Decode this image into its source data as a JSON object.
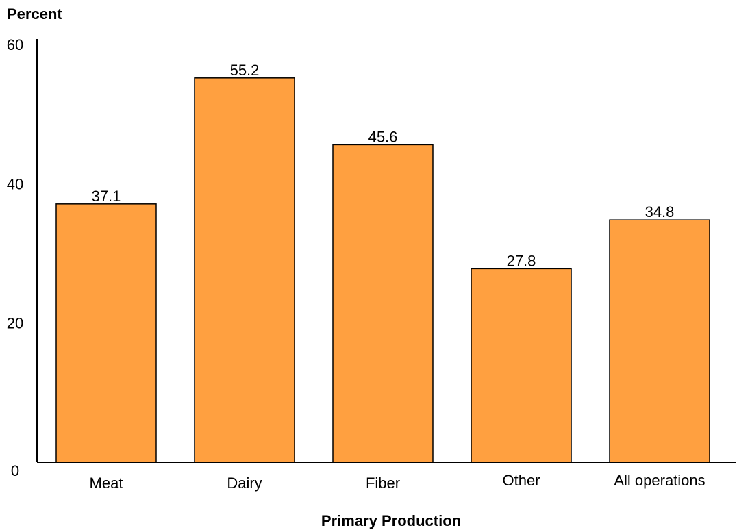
{
  "chart_data": {
    "type": "bar",
    "categories": [
      "Meat",
      "Dairy",
      "Fiber",
      "Other",
      "All operations"
    ],
    "values": [
      37.1,
      55.2,
      45.6,
      27.8,
      34.8
    ],
    "data_labels": [
      "37.1",
      "55.2",
      "45.6",
      "27.8",
      "34.8"
    ],
    "title": "",
    "xlabel": "Primary Production",
    "ylabel": "Percent",
    "ylim": [
      0,
      60
    ],
    "yticks": [
      "0",
      "20",
      "40",
      "60"
    ],
    "grid": false,
    "legend": "none",
    "colors": {
      "bar_fill": "#FFA040",
      "bar_stroke": "#000000",
      "axis": "#000000"
    }
  }
}
